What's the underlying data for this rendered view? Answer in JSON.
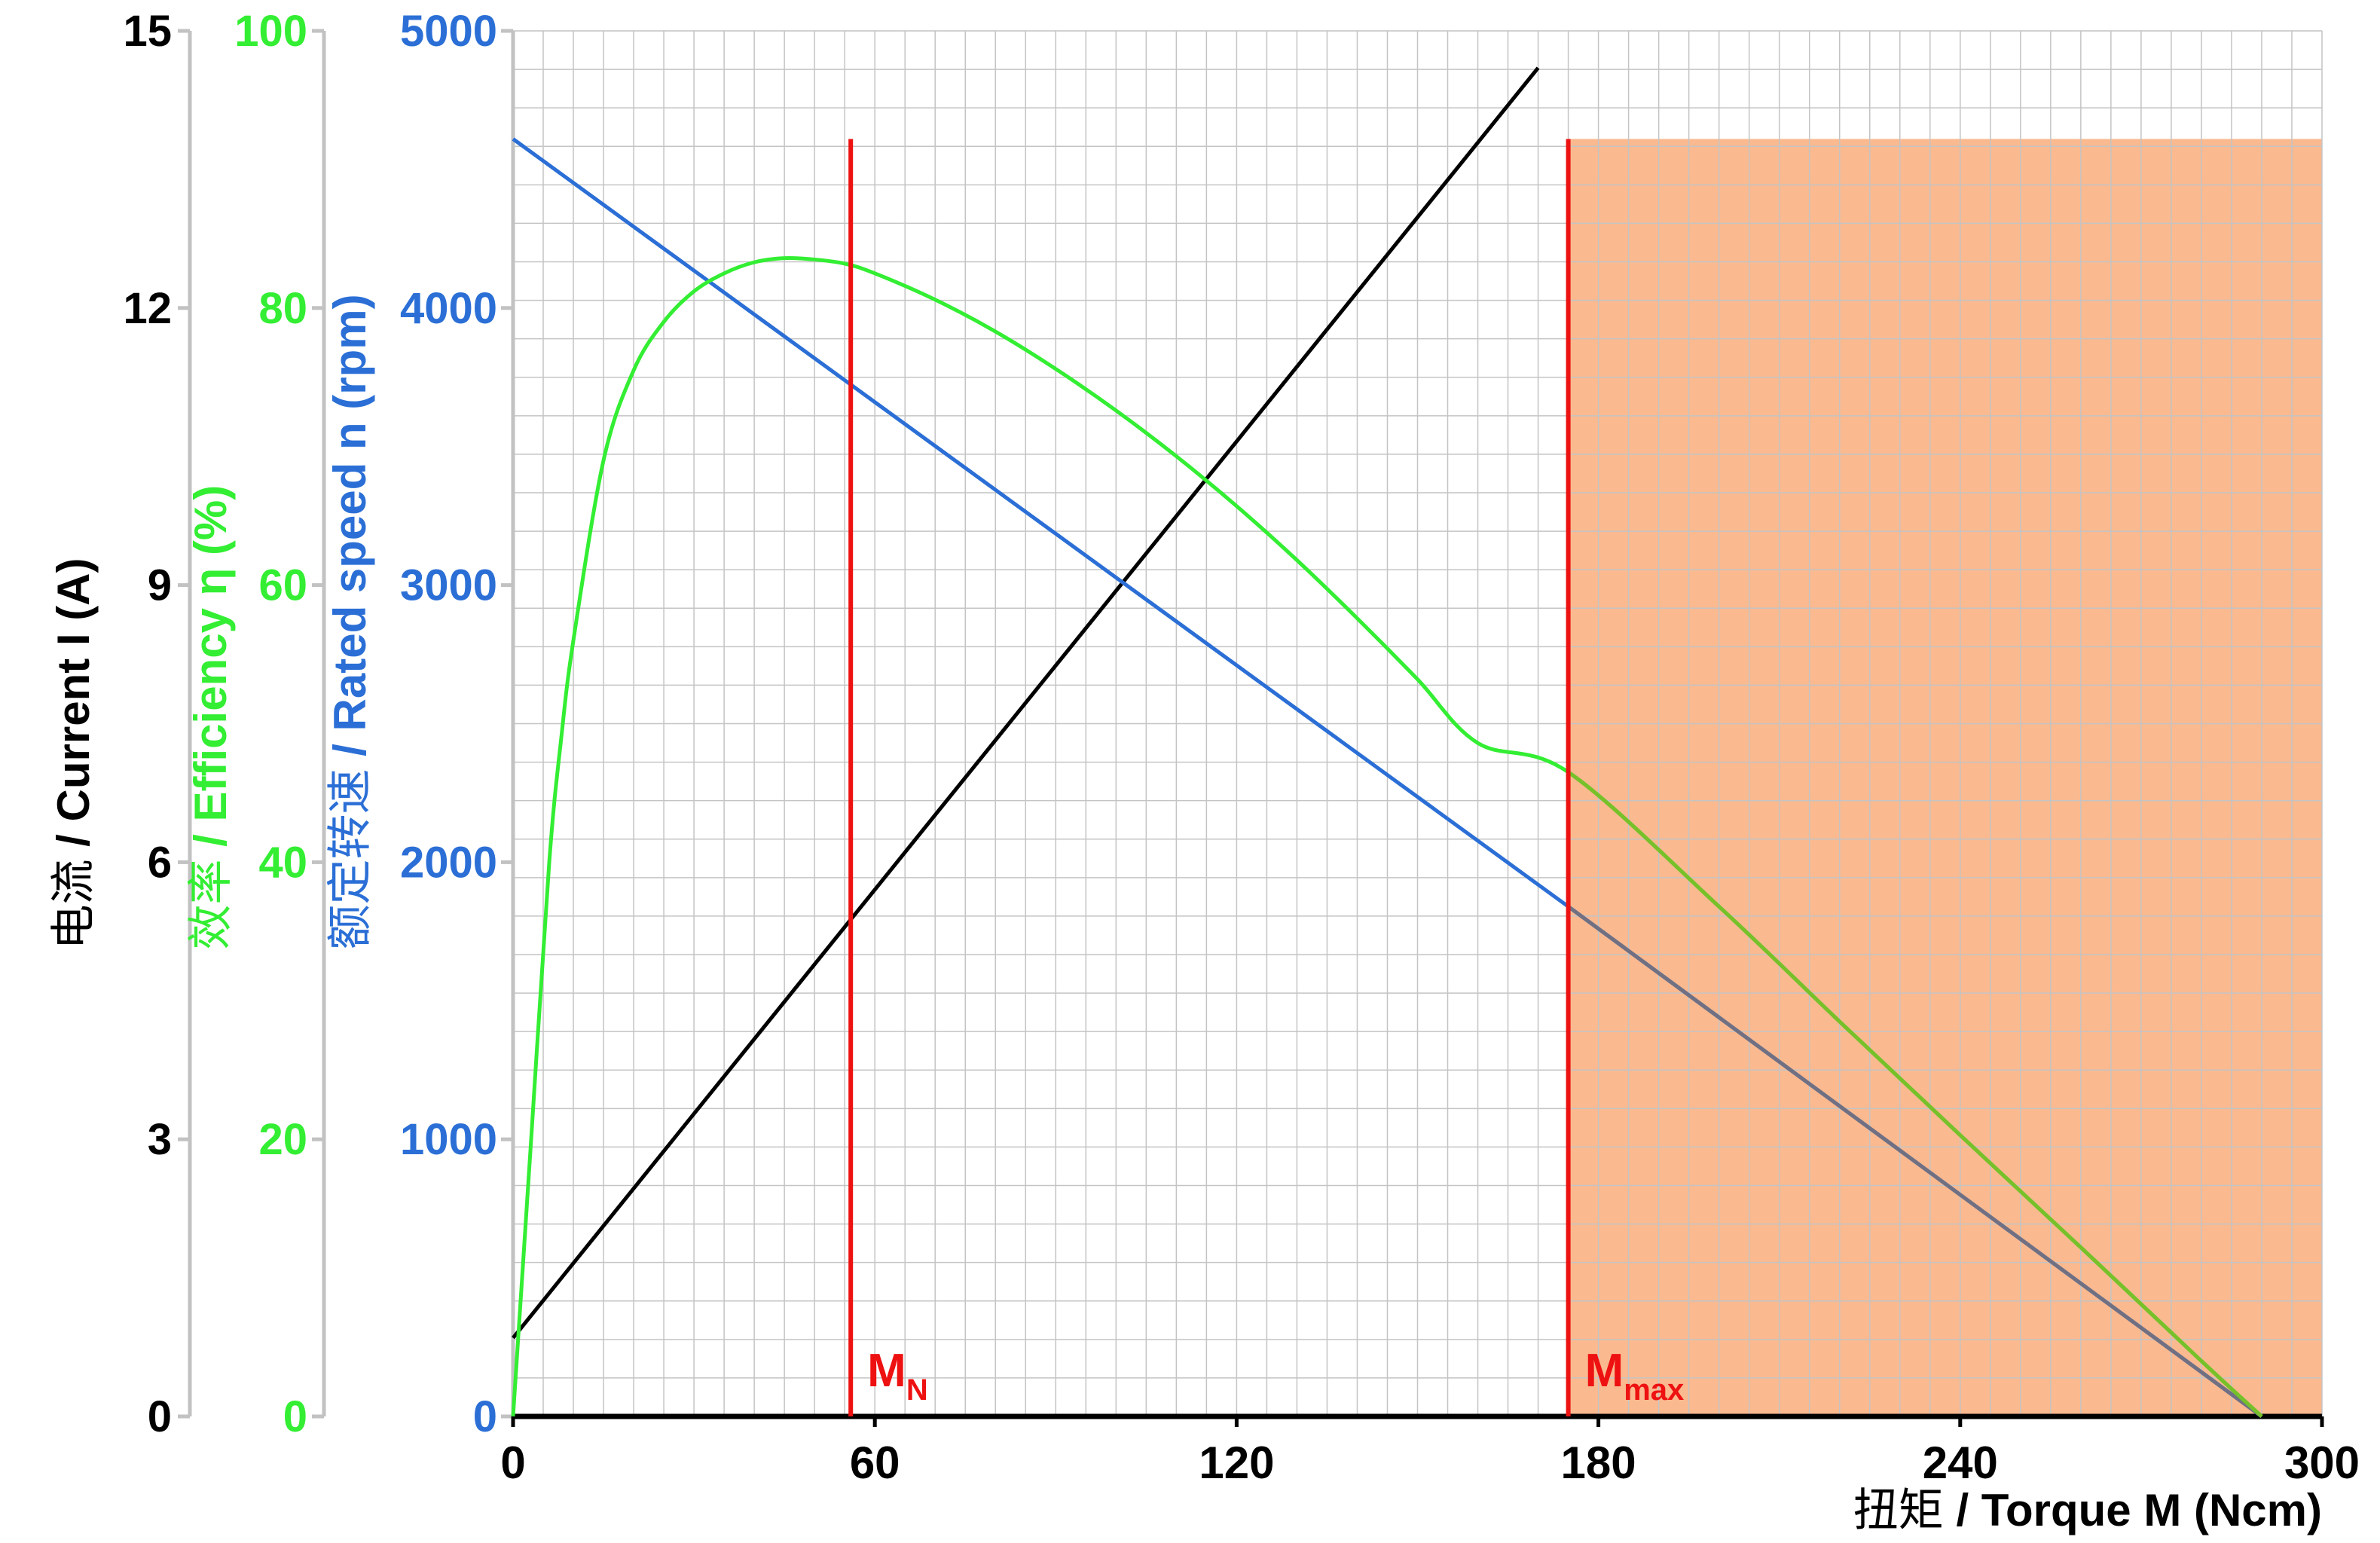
{
  "chart_data": {
    "type": "line",
    "x": {
      "label_cn": "扭矩",
      "label_en": "Torque M (Ncm)",
      "separator": " / ",
      "min": 0,
      "max": 300,
      "ticks": [
        0,
        60,
        120,
        180,
        240,
        300
      ]
    },
    "y_axes": [
      {
        "id": "current",
        "label_cn": "电流",
        "label_en": "Current I (A)",
        "separator": " / ",
        "color": "#000000",
        "min": 0,
        "max": 15,
        "ticks": [
          0,
          3,
          6,
          9,
          12,
          15
        ]
      },
      {
        "id": "efficiency",
        "label_cn": "效率",
        "label_en": "Efficiency η  (%)",
        "separator": " / ",
        "color": "#33ee33",
        "min": 0,
        "max": 100,
        "ticks": [
          0,
          20,
          40,
          60,
          80,
          100
        ]
      },
      {
        "id": "speed",
        "label_cn": "额定转速",
        "label_en": "Rated speed n (rpm)",
        "separator": " / ",
        "color": "#2b6fd6",
        "min": 0,
        "max": 5000,
        "ticks": [
          0,
          1000,
          2000,
          3000,
          4000,
          5000
        ]
      }
    ],
    "series": [
      {
        "id": "current",
        "axis": "current",
        "color": "#000000",
        "points": [
          [
            0,
            0.85
          ],
          [
            170,
            14.6
          ]
        ]
      },
      {
        "id": "speed",
        "axis": "speed",
        "color": "#2b6fd6",
        "color_in_shade": "#707082",
        "points": [
          [
            0,
            4610
          ],
          [
            175,
            1840
          ],
          [
            290,
            0
          ]
        ]
      },
      {
        "id": "efficiency",
        "axis": "efficiency",
        "color": "#33ee33",
        "color_in_shade": "#77c02a",
        "points": [
          [
            0,
            0
          ],
          [
            3,
            20
          ],
          [
            6,
            40
          ],
          [
            8,
            49
          ],
          [
            10,
            56
          ],
          [
            15,
            69
          ],
          [
            20,
            75.5
          ],
          [
            25,
            79
          ],
          [
            30,
            81.2
          ],
          [
            35,
            82.5
          ],
          [
            40,
            83.3
          ],
          [
            45,
            83.6
          ],
          [
            50,
            83.5
          ],
          [
            55,
            83.2
          ],
          [
            60,
            82.5
          ],
          [
            70,
            80.6
          ],
          [
            80,
            78.3
          ],
          [
            90,
            75.6
          ],
          [
            100,
            72.6
          ],
          [
            110,
            69.3
          ],
          [
            120,
            65.7
          ],
          [
            130,
            61.8
          ],
          [
            140,
            57.6
          ],
          [
            150,
            53.2
          ],
          [
            160,
            48.6
          ],
          [
            175,
            46.5
          ],
          [
            200,
            36.8
          ],
          [
            220,
            28.5
          ],
          [
            240,
            20.3
          ],
          [
            260,
            12.2
          ],
          [
            280,
            4
          ],
          [
            290,
            0
          ]
        ]
      }
    ],
    "markers": [
      {
        "label": "M",
        "sub": "N",
        "color": "#ee1111",
        "x": 56
      },
      {
        "label": "M",
        "sub": "max",
        "color": "#ee1111",
        "x": 175
      }
    ],
    "marker_top_speed": 4610,
    "shaded_region": {
      "x_from": 175,
      "x_to": 300,
      "y_top_speed": 4610,
      "color": "#f8a26a"
    },
    "grid": true,
    "legend": "none"
  }
}
